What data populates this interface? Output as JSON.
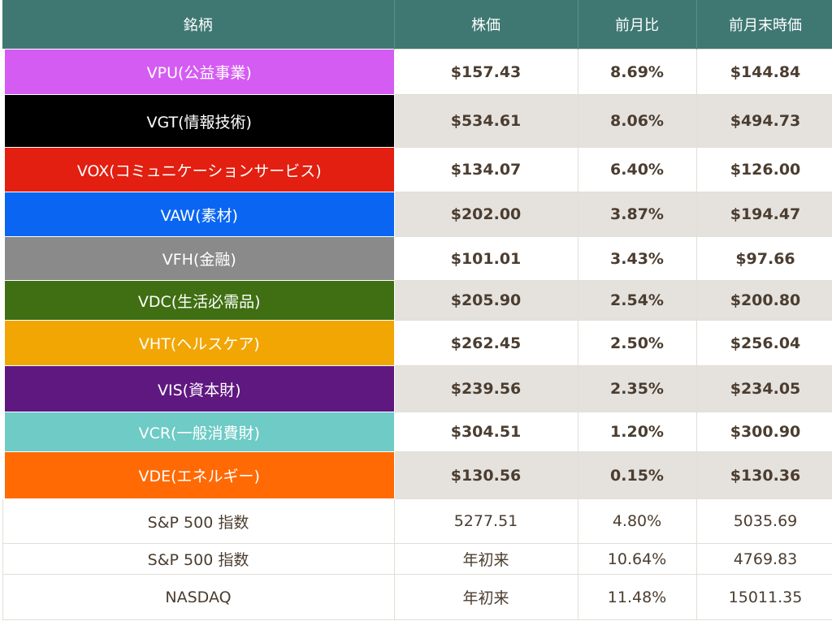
{
  "headers": [
    "銘柄",
    "株価",
    "前月比",
    "前月末時価"
  ],
  "sectors": [
    {
      "name": "VPU(公益事業)",
      "price": "$157.43",
      "change": "8.69%",
      "prev": "$144.84",
      "color": "#d45cf2",
      "shade": false,
      "h": 56
    },
    {
      "name": "VGT(情報技術)",
      "price": "$534.61",
      "change": "8.06%",
      "prev": "$494.73",
      "color": "#000000",
      "shade": true,
      "h": 65
    },
    {
      "name": "VOX(コミュニケーションサービス)",
      "price": "$134.07",
      "change": "6.40%",
      "prev": "$126.00",
      "color": "#e21f10",
      "shade": false,
      "h": 55
    },
    {
      "name": "VAW(素材)",
      "price": "$202.00",
      "change": "3.87%",
      "prev": "$194.47",
      "color": "#0a66f2",
      "shade": true,
      "h": 55
    },
    {
      "name": "VFH(金融)",
      "price": "$101.01",
      "change": "3.43%",
      "prev": "$97.66",
      "color": "#8a8a8a",
      "shade": false,
      "h": 54
    },
    {
      "name": "VDC(生活必需品)",
      "price": "$205.90",
      "change": "2.54%",
      "prev": "$200.80",
      "color": "#3f6f12",
      "shade": true,
      "h": 49
    },
    {
      "name": "VHT(ヘルスケア)",
      "price": "$262.45",
      "change": "2.50%",
      "prev": "$256.04",
      "color": "#f2a604",
      "shade": false,
      "h": 56
    },
    {
      "name": "VIS(資本財)",
      "price": "$239.56",
      "change": "2.35%",
      "prev": "$234.05",
      "color": "#5f1880",
      "shade": true,
      "h": 57
    },
    {
      "name": "VCR(一般消費財)",
      "price": "$304.51",
      "change": "1.20%",
      "prev": "$300.90",
      "color": "#6ecbc6",
      "shade": false,
      "h": 49
    },
    {
      "name": "VDE(エネルギー)",
      "price": "$130.56",
      "change": "0.15%",
      "prev": "$130.36",
      "color": "#ff6a05",
      "shade": true,
      "h": 58
    }
  ],
  "indices": [
    {
      "name": "S&P 500 指数",
      "price": "5277.51",
      "change": "4.80%",
      "prev": "5035.69",
      "h": 55
    },
    {
      "name": "S&P 500 指数",
      "price": "年初来",
      "change": "10.64%",
      "prev": "4769.83",
      "h": 38
    },
    {
      "name": "NASDAQ",
      "price": "年初来",
      "change": "11.48%",
      "prev": "15011.35",
      "h": 56
    }
  ]
}
